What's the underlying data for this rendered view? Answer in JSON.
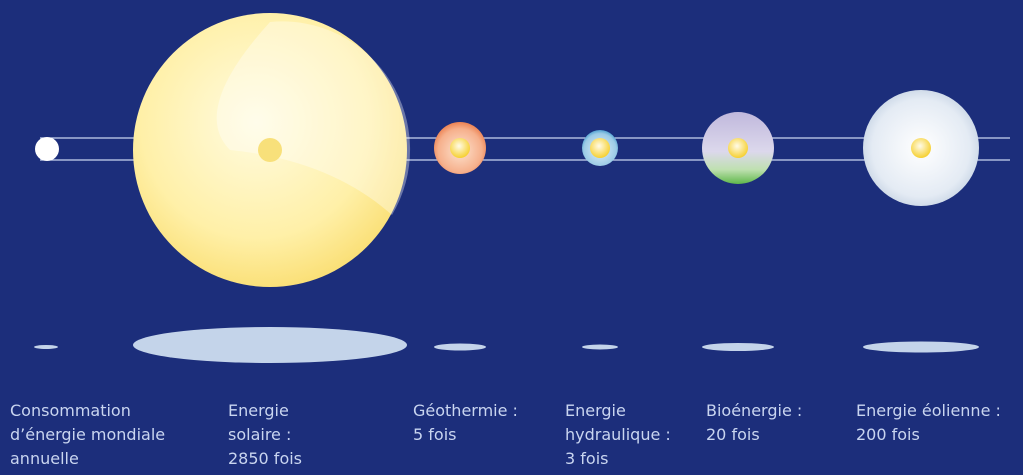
{
  "items": [
    {
      "lines": [
        "Consommation",
        "d’énergie mondiale",
        "annuelle"
      ]
    },
    {
      "lines": [
        "Energie",
        "solaire :",
        "2850 fois"
      ]
    },
    {
      "lines": [
        "Géothermie :",
        "5 fois"
      ]
    },
    {
      "lines": [
        "Energie",
        "hydraulique :",
        "3 fois"
      ]
    },
    {
      "lines": [
        "Bioénergie :",
        "20 fois"
      ]
    },
    {
      "lines": [
        "Energie éolienne :",
        "200 fois"
      ]
    }
  ]
}
